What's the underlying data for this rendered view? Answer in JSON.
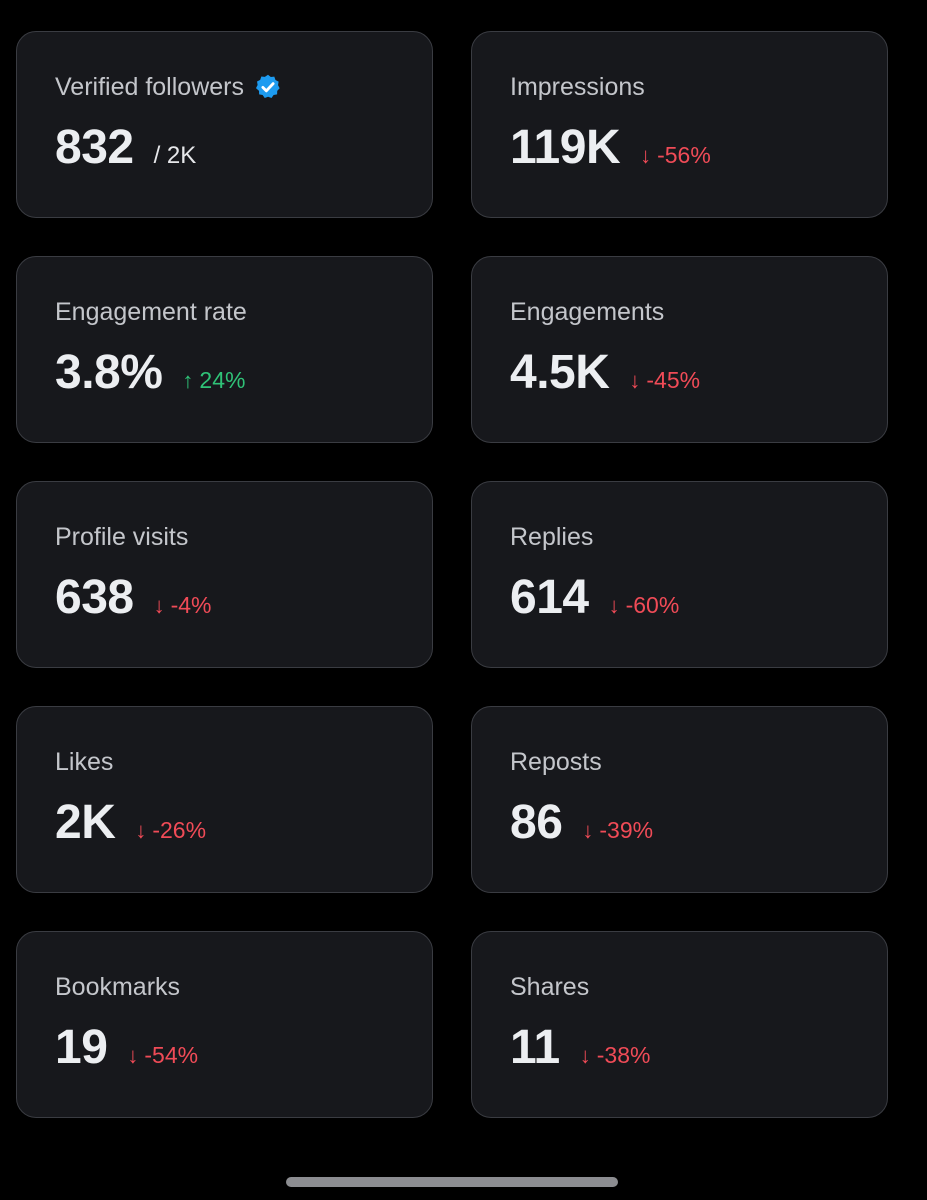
{
  "cards": [
    {
      "label": "Verified followers",
      "value": "832",
      "sub": "/ 2K",
      "verified": true
    },
    {
      "label": "Impressions",
      "value": "119K",
      "change": "-56%",
      "direction": "down"
    },
    {
      "label": "Engagement rate",
      "value": "3.8%",
      "change": "24%",
      "direction": "up"
    },
    {
      "label": "Engagements",
      "value": "4.5K",
      "change": "-45%",
      "direction": "down"
    },
    {
      "label": "Profile visits",
      "value": "638",
      "change": "-4%",
      "direction": "down"
    },
    {
      "label": "Replies",
      "value": "614",
      "change": "-60%",
      "direction": "down"
    },
    {
      "label": "Likes",
      "value": "2K",
      "change": "-26%",
      "direction": "down"
    },
    {
      "label": "Reposts",
      "value": "86",
      "change": "-39%",
      "direction": "down"
    },
    {
      "label": "Bookmarks",
      "value": "19",
      "change": "-54%",
      "direction": "down"
    },
    {
      "label": "Shares",
      "value": "11",
      "change": "-38%",
      "direction": "down"
    }
  ],
  "icons": {
    "verified": "verified-badge-icon",
    "down": "arrow-down-icon",
    "up": "arrow-up-icon"
  },
  "colors": {
    "background": "#000000",
    "card": "#17181c",
    "card_border": "#3a3c42",
    "negative": "#f04b57",
    "positive": "#2fc277",
    "verified": "#1d9bf0"
  }
}
